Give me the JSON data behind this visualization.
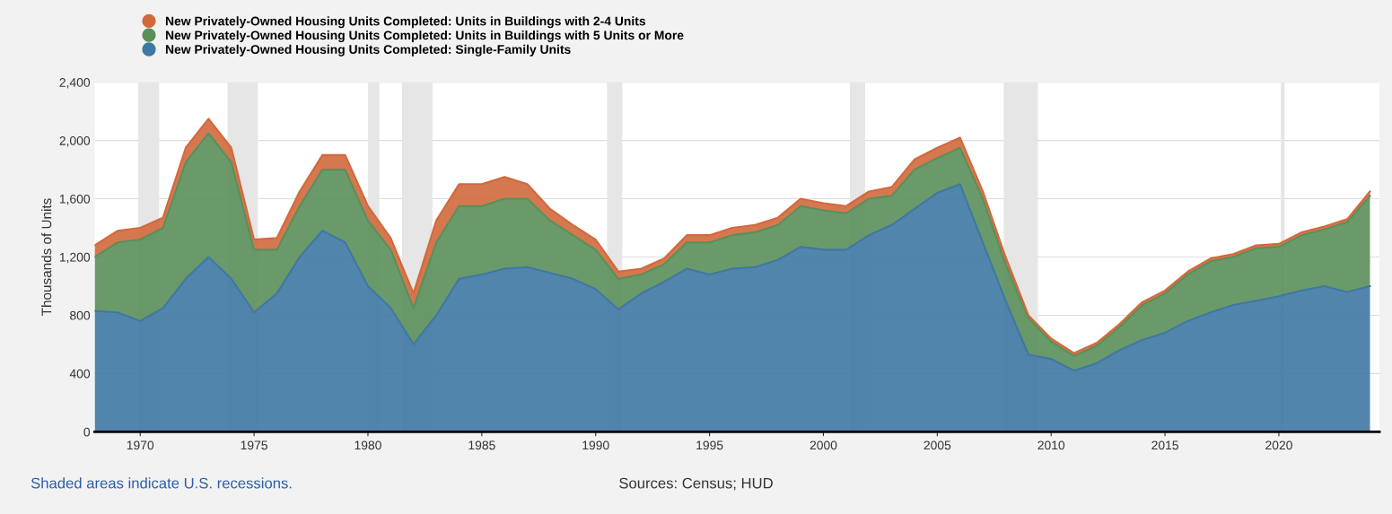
{
  "chart_data": {
    "type": "area",
    "stacked": true,
    "ylabel": "Thousands of Units",
    "x": [
      "1968",
      "1969",
      "1970",
      "1971",
      "1972",
      "1973",
      "1974",
      "1975",
      "1976",
      "1977",
      "1978",
      "1979",
      "1980",
      "1981",
      "1982",
      "1983",
      "1984",
      "1985",
      "1986",
      "1987",
      "1988",
      "1989",
      "1990",
      "1991",
      "1992",
      "1993",
      "1994",
      "1995",
      "1996",
      "1997",
      "1998",
      "1999",
      "2000",
      "2001",
      "2002",
      "2003",
      "2004",
      "2005",
      "2006",
      "2007",
      "2008",
      "2009",
      "2010",
      "2011",
      "2012",
      "2013",
      "2014",
      "2015",
      "2016",
      "2017",
      "2018",
      "2019",
      "2020",
      "2021",
      "2022",
      "2023",
      "2024"
    ],
    "series": [
      {
        "name": "New Privately-Owned Housing Units Completed: Single-Family Units",
        "color": "#3f78a3",
        "values": [
          830,
          820,
          760,
          850,
          1050,
          1200,
          1050,
          820,
          950,
          1200,
          1380,
          1300,
          1000,
          850,
          600,
          800,
          1050,
          1080,
          1120,
          1130,
          1090,
          1050,
          980,
          840,
          950,
          1030,
          1120,
          1080,
          1120,
          1130,
          1180,
          1270,
          1250,
          1250,
          1350,
          1420,
          1530,
          1640,
          1700,
          1300,
          900,
          530,
          500,
          420,
          470,
          560,
          630,
          680,
          760,
          820,
          870,
          900,
          930,
          970,
          1000,
          960,
          1000
        ]
      },
      {
        "name": "New Privately-Owned Housing Units Completed: Units in Buildings with 5 Units or More",
        "color": "#5a8f5a",
        "values": [
          370,
          480,
          560,
          550,
          800,
          850,
          800,
          430,
          300,
          350,
          420,
          500,
          450,
          400,
          250,
          500,
          500,
          470,
          480,
          470,
          360,
          300,
          270,
          210,
          130,
          120,
          180,
          220,
          230,
          240,
          240,
          280,
          270,
          250,
          250,
          200,
          270,
          240,
          250,
          300,
          250,
          250,
          120,
          100,
          120,
          160,
          240,
          270,
          320,
          350,
          330,
          360,
          340,
          380,
          390,
          480,
          620
        ]
      },
      {
        "name": "New Privately-Owned Housing Units Completed: Units in Buildings with 2-4 Units",
        "color": "#d2693c",
        "values": [
          80,
          80,
          80,
          70,
          100,
          100,
          100,
          70,
          80,
          100,
          100,
          100,
          100,
          80,
          100,
          150,
          150,
          150,
          150,
          100,
          80,
          70,
          70,
          50,
          40,
          40,
          50,
          50,
          50,
          50,
          50,
          50,
          50,
          50,
          50,
          60,
          70,
          70,
          70,
          50,
          50,
          20,
          20,
          20,
          20,
          20,
          20,
          20,
          20,
          20,
          20,
          20,
          20,
          20,
          20,
          20,
          30
        ]
      }
    ],
    "xlim": [
      "1968-01",
      "2024-06"
    ],
    "xticks": [
      "1970",
      "1975",
      "1980",
      "1985",
      "1990",
      "1995",
      "2000",
      "2005",
      "2010",
      "2015",
      "2020"
    ],
    "ylim": [
      0,
      2400
    ],
    "yticks": [
      0,
      400,
      800,
      {
        "value": 1200,
        "label": "1,200"
      },
      {
        "value": 1600,
        "label": "1,600"
      },
      {
        "value": 2000,
        "label": "2,000"
      },
      {
        "value": 2400,
        "label": "2,400"
      }
    ],
    "grid": "y",
    "legend": "top left",
    "bands": [
      {
        "axis": "x",
        "from": "1969-12",
        "to": "1970-11",
        "color": "#e6e6e6"
      },
      {
        "axis": "x",
        "from": "1973-11",
        "to": "1975-03",
        "color": "#e6e6e6"
      },
      {
        "axis": "x",
        "from": "1980-01",
        "to": "1980-07",
        "color": "#e6e6e6"
      },
      {
        "axis": "x",
        "from": "1981-07",
        "to": "1982-11",
        "color": "#e6e6e6"
      },
      {
        "axis": "x",
        "from": "1990-07",
        "to": "1991-03",
        "color": "#e6e6e6"
      },
      {
        "axis": "x",
        "from": "2001-03",
        "to": "2001-11",
        "color": "#e6e6e6"
      },
      {
        "axis": "x",
        "from": "2007-12",
        "to": "2009-06",
        "color": "#e6e6e6"
      },
      {
        "axis": "x",
        "from": "2020-02",
        "to": "2020-04",
        "color": "#e6e6e6"
      }
    ],
    "annotations": [
      "Shaded areas indicate U.S. recessions.",
      "Sources: Census; HUD"
    ]
  }
}
